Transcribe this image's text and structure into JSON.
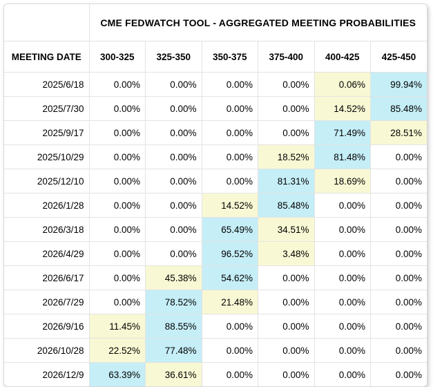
{
  "colors": {
    "highest": "#C5EEF7",
    "second_highest": "#F8F8D4",
    "corner_cell_bg": "#F5F5F5",
    "grid_line": "#E3E3E3",
    "text": "#000000"
  },
  "table": {
    "title": "CME FEDWATCH TOOL - AGGREGATED MEETING PROBABILITIES",
    "date_column_header": "MEETING DATE",
    "rate_column_headers": [
      "300-325",
      "325-350",
      "350-375",
      "375-400",
      "400-425",
      "425-450"
    ],
    "rows": [
      {
        "date": "2025/6/18",
        "values": [
          "0.00%",
          "0.00%",
          "0.00%",
          "0.00%",
          "0.06%",
          "99.94%"
        ],
        "highlights": [
          null,
          null,
          null,
          null,
          "second_highest",
          "highest"
        ]
      },
      {
        "date": "2025/7/30",
        "values": [
          "0.00%",
          "0.00%",
          "0.00%",
          "0.00%",
          "14.52%",
          "85.48%"
        ],
        "highlights": [
          null,
          null,
          null,
          null,
          "second_highest",
          "highest"
        ]
      },
      {
        "date": "2025/9/17",
        "values": [
          "0.00%",
          "0.00%",
          "0.00%",
          "0.00%",
          "71.49%",
          "28.51%"
        ],
        "highlights": [
          null,
          null,
          null,
          null,
          "highest",
          "second_highest"
        ]
      },
      {
        "date": "2025/10/29",
        "values": [
          "0.00%",
          "0.00%",
          "0.00%",
          "18.52%",
          "81.48%",
          "0.00%"
        ],
        "highlights": [
          null,
          null,
          null,
          "second_highest",
          "highest",
          null
        ]
      },
      {
        "date": "2025/12/10",
        "values": [
          "0.00%",
          "0.00%",
          "0.00%",
          "81.31%",
          "18.69%",
          "0.00%"
        ],
        "highlights": [
          null,
          null,
          null,
          "highest",
          "second_highest",
          null
        ]
      },
      {
        "date": "2026/1/28",
        "values": [
          "0.00%",
          "0.00%",
          "14.52%",
          "85.48%",
          "0.00%",
          "0.00%"
        ],
        "highlights": [
          null,
          null,
          "second_highest",
          "highest",
          null,
          null
        ]
      },
      {
        "date": "2026/3/18",
        "values": [
          "0.00%",
          "0.00%",
          "65.49%",
          "34.51%",
          "0.00%",
          "0.00%"
        ],
        "highlights": [
          null,
          null,
          "highest",
          "second_highest",
          null,
          null
        ]
      },
      {
        "date": "2026/4/29",
        "values": [
          "0.00%",
          "0.00%",
          "96.52%",
          "3.48%",
          "0.00%",
          "0.00%"
        ],
        "highlights": [
          null,
          null,
          "highest",
          "second_highest",
          null,
          null
        ]
      },
      {
        "date": "2026/6/17",
        "values": [
          "0.00%",
          "45.38%",
          "54.62%",
          "0.00%",
          "0.00%",
          "0.00%"
        ],
        "highlights": [
          null,
          "second_highest",
          "highest",
          null,
          null,
          null
        ]
      },
      {
        "date": "2026/7/29",
        "values": [
          "0.00%",
          "78.52%",
          "21.48%",
          "0.00%",
          "0.00%",
          "0.00%"
        ],
        "highlights": [
          null,
          "highest",
          "second_highest",
          null,
          null,
          null
        ]
      },
      {
        "date": "2026/9/16",
        "values": [
          "11.45%",
          "88.55%",
          "0.00%",
          "0.00%",
          "0.00%",
          "0.00%"
        ],
        "highlights": [
          "second_highest",
          "highest",
          null,
          null,
          null,
          null
        ]
      },
      {
        "date": "2026/10/28",
        "values": [
          "22.52%",
          "77.48%",
          "0.00%",
          "0.00%",
          "0.00%",
          "0.00%"
        ],
        "highlights": [
          "second_highest",
          "highest",
          null,
          null,
          null,
          null
        ]
      },
      {
        "date": "2026/12/9",
        "values": [
          "63.39%",
          "36.61%",
          "0.00%",
          "0.00%",
          "0.00%",
          "0.00%"
        ],
        "highlights": [
          "highest",
          "second_highest",
          null,
          null,
          null,
          null
        ]
      }
    ]
  },
  "chart_data": {
    "type": "table",
    "title": "CME FEDWATCH TOOL - AGGREGATED MEETING PROBABILITIES",
    "row_label": "MEETING DATE",
    "columns": [
      "300-325",
      "325-350",
      "350-375",
      "375-400",
      "400-425",
      "425-450"
    ],
    "rows": [
      "2025/6/18",
      "2025/7/30",
      "2025/9/17",
      "2025/10/29",
      "2025/12/10",
      "2026/1/28",
      "2026/3/18",
      "2026/4/29",
      "2026/6/17",
      "2026/7/29",
      "2026/9/16",
      "2026/10/28",
      "2026/12/9"
    ],
    "values_percent": [
      [
        0.0,
        0.0,
        0.0,
        0.0,
        0.06,
        99.94
      ],
      [
        0.0,
        0.0,
        0.0,
        0.0,
        14.52,
        85.48
      ],
      [
        0.0,
        0.0,
        0.0,
        0.0,
        71.49,
        28.51
      ],
      [
        0.0,
        0.0,
        0.0,
        18.52,
        81.48,
        0.0
      ],
      [
        0.0,
        0.0,
        0.0,
        81.31,
        18.69,
        0.0
      ],
      [
        0.0,
        0.0,
        14.52,
        85.48,
        0.0,
        0.0
      ],
      [
        0.0,
        0.0,
        65.49,
        34.51,
        0.0,
        0.0
      ],
      [
        0.0,
        0.0,
        96.52,
        3.48,
        0.0,
        0.0
      ],
      [
        0.0,
        45.38,
        54.62,
        0.0,
        0.0,
        0.0
      ],
      [
        0.0,
        78.52,
        21.48,
        0.0,
        0.0,
        0.0
      ],
      [
        11.45,
        88.55,
        0.0,
        0.0,
        0.0,
        0.0
      ],
      [
        22.52,
        77.48,
        0.0,
        0.0,
        0.0,
        0.0
      ],
      [
        63.39,
        36.61,
        0.0,
        0.0,
        0.0,
        0.0
      ]
    ],
    "highlight_legend": {
      "blue_cells": "highest probability in row",
      "yellow_cells": "second highest probability in row"
    }
  }
}
